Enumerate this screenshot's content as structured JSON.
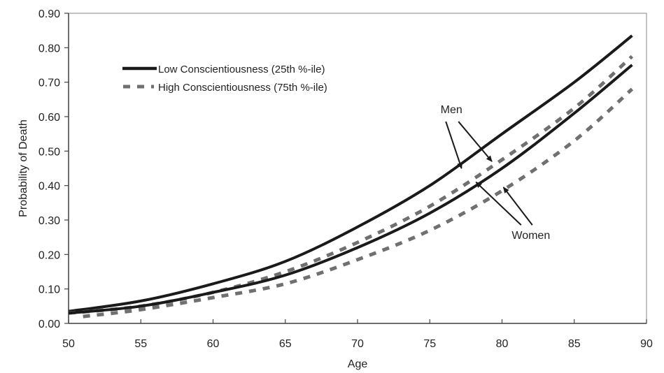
{
  "chart_data": {
    "type": "line",
    "title": "",
    "xlabel": "Age",
    "ylabel": "Probability of Death",
    "xlim": [
      50,
      90
    ],
    "ylim": [
      0,
      0.9
    ],
    "xticks": [
      "50",
      "55",
      "60",
      "65",
      "70",
      "75",
      "80",
      "85",
      "90"
    ],
    "yticks": [
      "0.00",
      "0.10",
      "0.20",
      "0.30",
      "0.40",
      "0.50",
      "0.60",
      "0.70",
      "0.80",
      "0.90"
    ],
    "grid": false,
    "legend": {
      "placement": "top-left",
      "entries": [
        {
          "label": "Low Conscientiousness (25th %-ile)",
          "style": "solid",
          "color": "#1a1a1a"
        },
        {
          "label": "High Conscientiousness (75th %-ile)",
          "style": "dashed",
          "color": "#707070"
        }
      ]
    },
    "series": [
      {
        "name": "Men - Low Conscientiousness (25th %-ile)",
        "group": "Men",
        "style": "solid",
        "color": "#1a1a1a",
        "x": [
          50,
          55,
          60,
          65,
          70,
          75,
          80,
          85,
          89
        ],
        "y": [
          0.035,
          0.065,
          0.115,
          0.18,
          0.28,
          0.4,
          0.55,
          0.7,
          0.835
        ]
      },
      {
        "name": "Men - High Conscientiousness (75th %-ile)",
        "group": "Men",
        "style": "dashed",
        "color": "#707070",
        "x": [
          50,
          55,
          60,
          65,
          70,
          75,
          80,
          85,
          89
        ],
        "y": [
          0.03,
          0.05,
          0.09,
          0.15,
          0.235,
          0.34,
          0.475,
          0.625,
          0.775
        ]
      },
      {
        "name": "Women - Low Conscientiousness (25th %-ile)",
        "group": "Women",
        "style": "solid",
        "color": "#1a1a1a",
        "x": [
          50,
          55,
          60,
          65,
          70,
          75,
          80,
          85,
          89
        ],
        "y": [
          0.03,
          0.05,
          0.09,
          0.14,
          0.22,
          0.32,
          0.45,
          0.61,
          0.75
        ]
      },
      {
        "name": "Women - High Conscientiousness (75th %-ile)",
        "group": "Women",
        "style": "dashed",
        "color": "#707070",
        "x": [
          51,
          55,
          60,
          65,
          70,
          75,
          80,
          85,
          89
        ],
        "y": [
          0.02,
          0.04,
          0.075,
          0.115,
          0.185,
          0.27,
          0.385,
          0.53,
          0.68
        ]
      }
    ],
    "annotations": [
      {
        "text": "Men",
        "points_to": [
          "Men - Low Conscientiousness (25th %-ile)",
          "Men - High Conscientiousness (75th %-ile)"
        ],
        "label_at": [
          76.5,
          0.61
        ],
        "arrows_to": [
          [
            77.2,
            0.45
          ],
          [
            79.3,
            0.47
          ]
        ]
      },
      {
        "text": "Women",
        "points_to": [
          "Women - Low Conscientiousness (25th %-ile)",
          "Women - High Conscientiousness (75th %-ile)"
        ],
        "label_at": [
          82,
          0.245
        ],
        "arrows_to": [
          [
            78.2,
            0.41
          ],
          [
            80.1,
            0.395
          ]
        ]
      }
    ]
  }
}
